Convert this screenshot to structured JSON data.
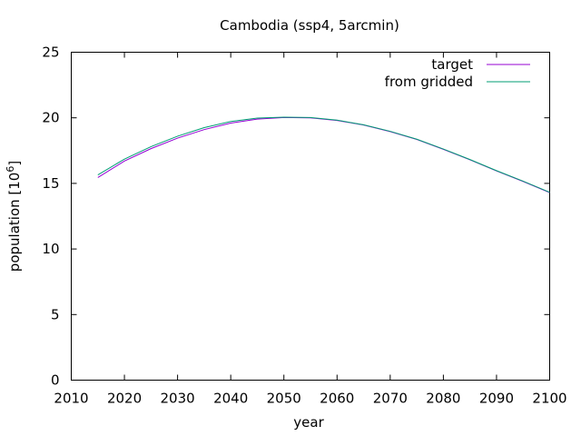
{
  "chart_data": {
    "type": "line",
    "title": "Cambodia (ssp4, 5arcmin)",
    "xlabel": "year",
    "ylabel": "population [10",
    "ylabel_exponent": "6",
    "ylabel_suffix": "]",
    "xlim": [
      2010,
      2100
    ],
    "ylim": [
      0,
      25
    ],
    "xticks": [
      2010,
      2020,
      2030,
      2040,
      2050,
      2060,
      2070,
      2080,
      2090,
      2100
    ],
    "yticks": [
      0,
      5,
      10,
      15,
      20,
      25
    ],
    "grid": false,
    "legend_position": "top-right",
    "x": [
      2015,
      2020,
      2025,
      2030,
      2035,
      2040,
      2045,
      2050,
      2055,
      2060,
      2065,
      2070,
      2075,
      2080,
      2085,
      2090,
      2095,
      2100
    ],
    "series": [
      {
        "name": "target",
        "color": "#9400d3",
        "values": [
          15.45,
          16.7,
          17.65,
          18.45,
          19.1,
          19.6,
          19.9,
          20.02,
          20.0,
          19.8,
          19.45,
          18.95,
          18.35,
          17.6,
          16.8,
          15.95,
          15.15,
          14.3
        ]
      },
      {
        "name": "from gridded",
        "color": "#009e73",
        "values": [
          15.65,
          16.85,
          17.8,
          18.6,
          19.25,
          19.72,
          19.98,
          20.05,
          20.02,
          19.82,
          19.47,
          18.97,
          18.37,
          17.62,
          16.82,
          15.97,
          15.17,
          14.32
        ]
      }
    ]
  }
}
